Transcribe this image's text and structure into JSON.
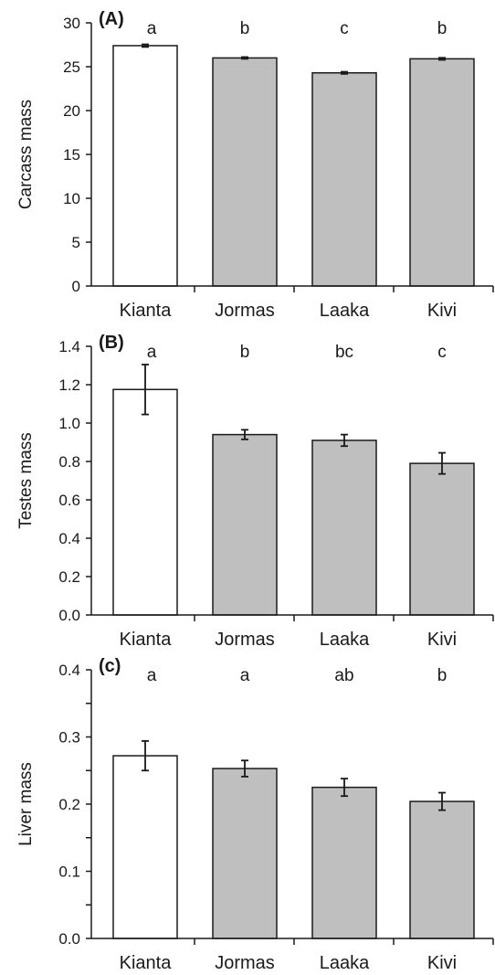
{
  "chart_data": [
    {
      "type": "bar",
      "panel_label": "(A)",
      "ylabel": "Carcass mass",
      "ylim": [
        0,
        30
      ],
      "yticks": [
        "0",
        "5",
        "10",
        "15",
        "20",
        "25",
        "30"
      ],
      "categories": [
        "Kianta",
        "Jormas",
        "Laaka",
        "Kivi"
      ],
      "values": [
        27.4,
        26.0,
        24.3,
        25.9
      ],
      "errors": [
        0.15,
        0.1,
        0.12,
        0.12
      ],
      "significance": [
        "a",
        "b",
        "c",
        "b"
      ],
      "bar_colors": [
        "#ffffff",
        "#bfbfbf",
        "#bfbfbf",
        "#bfbfbf"
      ]
    },
    {
      "type": "bar",
      "panel_label": "(B)",
      "ylabel": "Testes mass",
      "ylim": [
        0,
        1.4
      ],
      "yticks": [
        "0.0",
        "0.2",
        "0.4",
        "0.6",
        "0.8",
        "1.0",
        "1.2",
        "1.4"
      ],
      "categories": [
        "Kianta",
        "Jormas",
        "Laaka",
        "Kivi"
      ],
      "values": [
        1.175,
        0.94,
        0.91,
        0.79
      ],
      "errors": [
        0.13,
        0.025,
        0.03,
        0.055
      ],
      "significance": [
        "a",
        "b",
        "bc",
        "c"
      ],
      "bar_colors": [
        "#ffffff",
        "#bfbfbf",
        "#bfbfbf",
        "#bfbfbf"
      ]
    },
    {
      "type": "bar",
      "panel_label": "(c)",
      "ylabel": "Liver mass",
      "ylim": [
        0,
        0.4
      ],
      "yticks": [
        "0.0",
        "0.1",
        "0.2",
        "0.3",
        "0.4"
      ],
      "categories": [
        "Kianta",
        "Jormas",
        "Laaka",
        "Kivi"
      ],
      "values": [
        0.272,
        0.253,
        0.225,
        0.204
      ],
      "errors": [
        0.022,
        0.012,
        0.013,
        0.013
      ],
      "significance": [
        "a",
        "a",
        "ab",
        "b"
      ],
      "bar_colors": [
        "#ffffff",
        "#bfbfbf",
        "#bfbfbf",
        "#bfbfbf"
      ]
    }
  ]
}
